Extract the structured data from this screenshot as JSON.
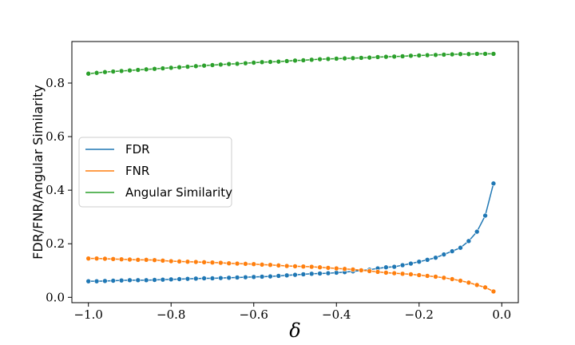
{
  "chart_data": {
    "type": "line",
    "xlabel": "δ",
    "ylabel": "FDR/FNR/Angular Similarity",
    "xlim": [
      -1.04,
      0.04
    ],
    "ylim": [
      -0.02,
      0.955
    ],
    "x_ticks": [
      -1.0,
      -0.8,
      -0.6,
      -0.4,
      -0.2,
      0.0
    ],
    "x_tick_labels": [
      "−1.0",
      "−0.8",
      "−0.6",
      "−0.4",
      "−0.2",
      "0.0"
    ],
    "y_ticks": [
      0.0,
      0.2,
      0.4,
      0.6,
      0.8
    ],
    "y_tick_labels": [
      "0.0",
      "0.2",
      "0.4",
      "0.6",
      "0.8"
    ],
    "legend_position": "center-left",
    "grid": false,
    "x": [
      -1.0,
      -0.98,
      -0.96,
      -0.94,
      -0.92,
      -0.9,
      -0.88,
      -0.86,
      -0.84,
      -0.82,
      -0.8,
      -0.78,
      -0.76,
      -0.74,
      -0.72,
      -0.7,
      -0.68,
      -0.66,
      -0.64,
      -0.62,
      -0.6,
      -0.58,
      -0.56,
      -0.54,
      -0.52,
      -0.5,
      -0.48,
      -0.46,
      -0.44,
      -0.42,
      -0.4,
      -0.38,
      -0.36,
      -0.34,
      -0.32,
      -0.3,
      -0.28,
      -0.26,
      -0.24,
      -0.22,
      -0.2,
      -0.18,
      -0.16,
      -0.14,
      -0.12,
      -0.1,
      -0.08,
      -0.06,
      -0.04,
      -0.02
    ],
    "series": [
      {
        "name": "FDR",
        "color": "#1f77b4",
        "values": [
          0.06,
          0.06,
          0.061,
          0.062,
          0.063,
          0.064,
          0.064,
          0.064,
          0.065,
          0.066,
          0.067,
          0.068,
          0.069,
          0.07,
          0.071,
          0.071,
          0.072,
          0.073,
          0.074,
          0.075,
          0.076,
          0.077,
          0.078,
          0.08,
          0.082,
          0.084,
          0.086,
          0.088,
          0.089,
          0.09,
          0.092,
          0.094,
          0.097,
          0.1,
          0.103,
          0.108,
          0.112,
          0.114,
          0.12,
          0.126,
          0.133,
          0.14,
          0.148,
          0.16,
          0.172,
          0.185,
          0.21,
          0.245,
          0.305,
          0.425
        ]
      },
      {
        "name": "FNR",
        "color": "#ff7f0e",
        "values": [
          0.145,
          0.145,
          0.144,
          0.143,
          0.142,
          0.141,
          0.14,
          0.14,
          0.139,
          0.137,
          0.135,
          0.134,
          0.133,
          0.132,
          0.131,
          0.13,
          0.129,
          0.127,
          0.126,
          0.125,
          0.124,
          0.122,
          0.121,
          0.119,
          0.117,
          0.116,
          0.115,
          0.114,
          0.112,
          0.11,
          0.108,
          0.106,
          0.104,
          0.101,
          0.098,
          0.095,
          0.092,
          0.09,
          0.088,
          0.086,
          0.083,
          0.08,
          0.077,
          0.073,
          0.068,
          0.062,
          0.055,
          0.046,
          0.037,
          0.022
        ]
      },
      {
        "name": "Angular Similarity",
        "color": "#2ca02c",
        "values": [
          0.835,
          0.838,
          0.841,
          0.843,
          0.845,
          0.847,
          0.849,
          0.851,
          0.853,
          0.855,
          0.857,
          0.859,
          0.861,
          0.863,
          0.865,
          0.867,
          0.869,
          0.871,
          0.872,
          0.874,
          0.876,
          0.878,
          0.879,
          0.88,
          0.882,
          0.884,
          0.885,
          0.887,
          0.889,
          0.89,
          0.891,
          0.892,
          0.893,
          0.894,
          0.895,
          0.897,
          0.898,
          0.899,
          0.9,
          0.902,
          0.903,
          0.904,
          0.905,
          0.906,
          0.907,
          0.908,
          0.908,
          0.909,
          0.909,
          0.909
        ]
      }
    ]
  }
}
